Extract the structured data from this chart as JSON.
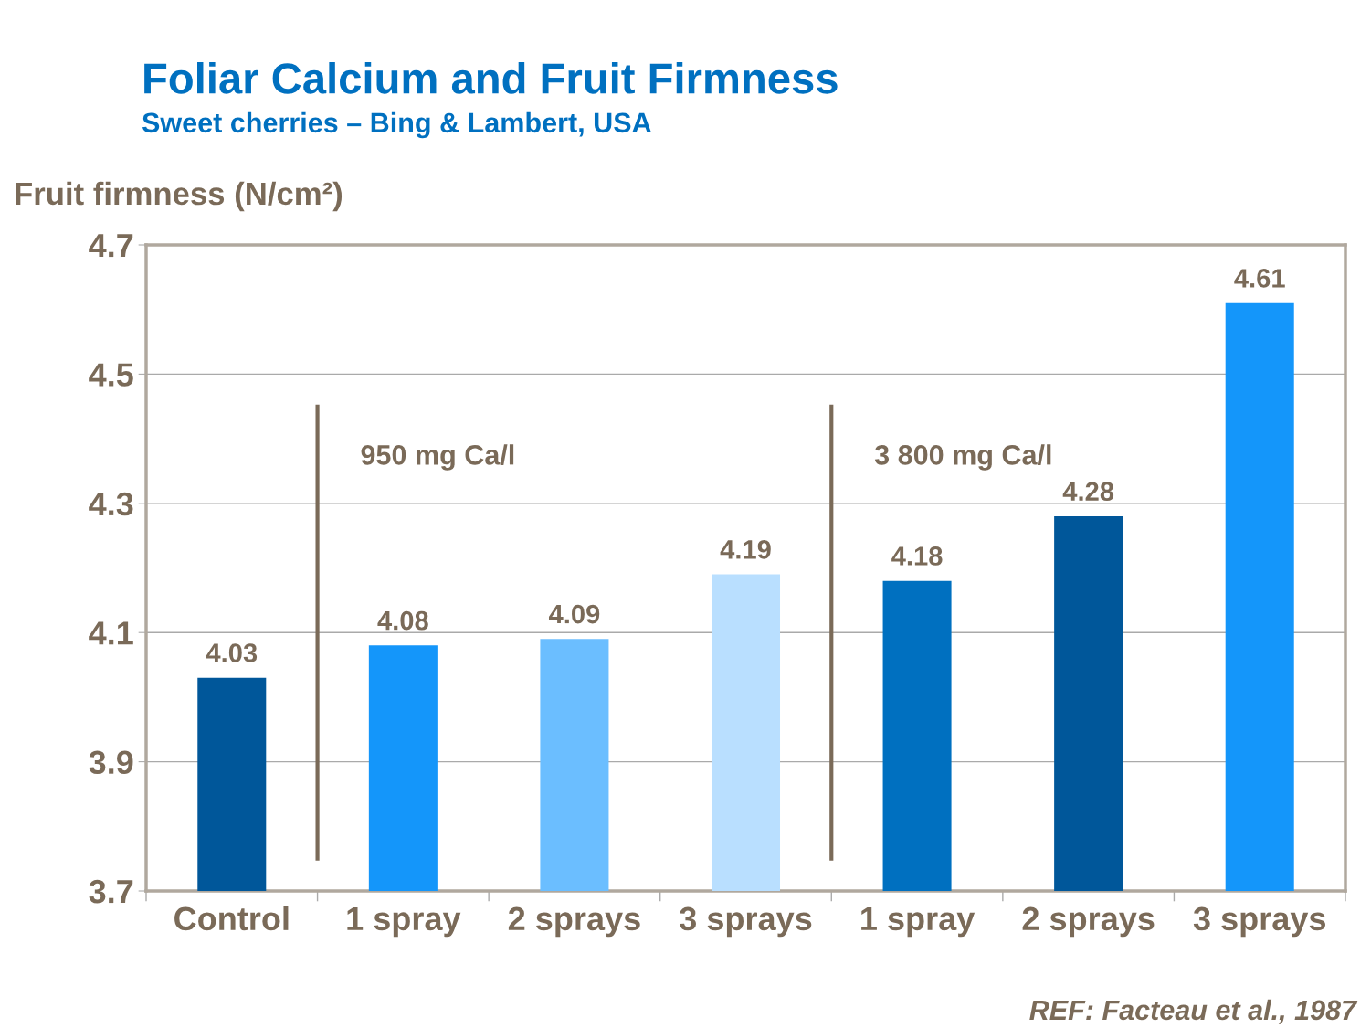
{
  "chart_data": {
    "type": "bar",
    "title": "Foliar Calcium and Fruit Firmness",
    "subtitle": "Sweet cherries – Bing & Lambert, USA",
    "ylabel": "Fruit firmness (N/cm²)",
    "categories": [
      "Control",
      "1 spray",
      "2 sprays",
      "3 sprays",
      "1 spray",
      "2 sprays",
      "3 sprays"
    ],
    "values": [
      4.03,
      4.08,
      4.09,
      4.19,
      4.18,
      4.28,
      4.61
    ],
    "colors": [
      "#00579a",
      "#1496fa",
      "#6bbeff",
      "#b9dfff",
      "#0070c0",
      "#00579a",
      "#1496fa"
    ],
    "data_labels": true,
    "ylim": [
      3.7,
      4.7
    ],
    "yticks": [
      3.7,
      3.9,
      4.1,
      4.3,
      4.5,
      4.7
    ],
    "grid": "y",
    "annotations": [
      "950 mg Ca/l",
      "3 800 mg Ca/l",
      "REF: Facteau et al., 1987"
    ]
  }
}
